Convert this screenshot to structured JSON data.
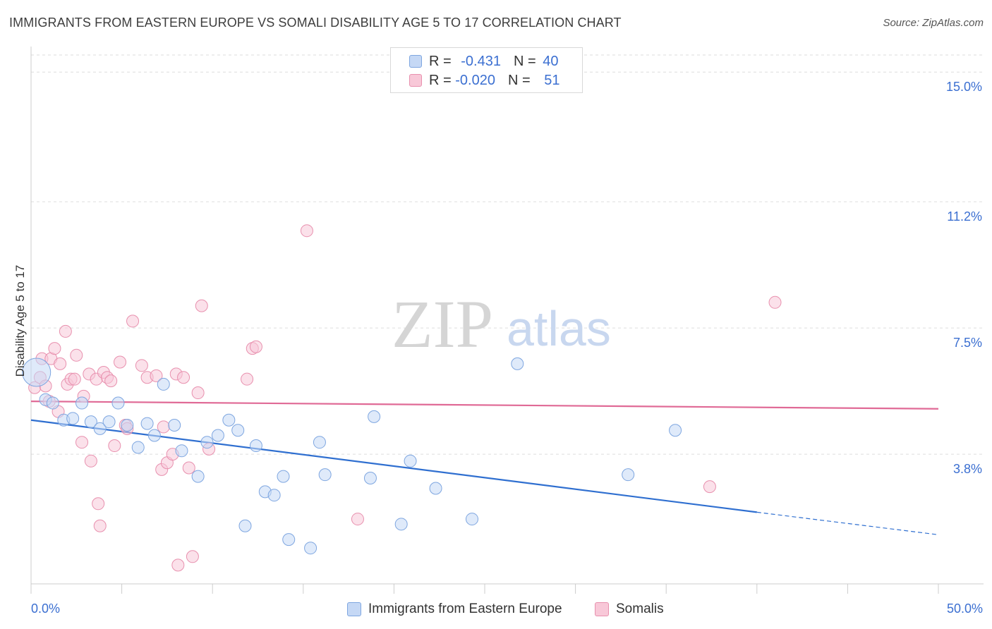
{
  "title": "IMMIGRANTS FROM EASTERN EUROPE VS SOMALI DISABILITY AGE 5 TO 17 CORRELATION CHART",
  "source": "Source: ZipAtlas.com",
  "watermark": {
    "zip": "ZIP",
    "atlas": "atlas"
  },
  "legend": {
    "rows": [
      {
        "r_label": "R = ",
        "r_value": "-0.431",
        "n_label": "N = ",
        "n_value": "40"
      },
      {
        "r_label": "R = ",
        "r_value": "-0.020",
        "n_label": "N = ",
        "n_value": "51"
      }
    ]
  },
  "colors": {
    "blue_fill": "#c5d8f5",
    "blue_stroke": "#7ea6e0",
    "blue_line": "#2f6fd0",
    "pink_fill": "#f8c8d8",
    "pink_stroke": "#e890ae",
    "pink_line": "#e06a96",
    "tick_label": "#3b6fd1",
    "grid": "#dddddd"
  },
  "chart_data": {
    "type": "scatter",
    "title": "IMMIGRANTS FROM EASTERN EUROPE VS SOMALI DISABILITY AGE 5 TO 17 CORRELATION CHART",
    "ylabel": "Disability Age 5 to 17",
    "xlim": [
      0,
      50
    ],
    "ylim": [
      0,
      15.5
    ],
    "x_tick_labels": [
      "0.0%",
      "50.0%"
    ],
    "y_ticks": [
      3.8,
      7.5,
      11.2,
      15.0
    ],
    "y_tick_labels": [
      "3.8%",
      "7.5%",
      "11.2%",
      "15.0%"
    ],
    "grid": true,
    "legend_position": "bottom",
    "series": [
      {
        "name": "Immigrants from Eastern Europe",
        "color": "#7ea6e0",
        "trend": {
          "x0": 0,
          "y0": 4.8,
          "x1": 40,
          "y1": 2.1,
          "dash_to_x": 50,
          "dash_to_y": 1.44
        },
        "points": [
          {
            "x": 0.3,
            "y": 6.2,
            "big": true
          },
          {
            "x": 0.8,
            "y": 5.4
          },
          {
            "x": 1.2,
            "y": 5.3
          },
          {
            "x": 1.8,
            "y": 4.8
          },
          {
            "x": 2.3,
            "y": 4.85
          },
          {
            "x": 2.8,
            "y": 5.3
          },
          {
            "x": 3.3,
            "y": 4.75
          },
          {
            "x": 3.8,
            "y": 4.55
          },
          {
            "x": 4.3,
            "y": 4.75
          },
          {
            "x": 4.8,
            "y": 5.3
          },
          {
            "x": 5.3,
            "y": 4.65
          },
          {
            "x": 5.9,
            "y": 4.0
          },
          {
            "x": 6.4,
            "y": 4.7
          },
          {
            "x": 6.8,
            "y": 4.35
          },
          {
            "x": 7.3,
            "y": 5.85
          },
          {
            "x": 7.9,
            "y": 4.65
          },
          {
            "x": 8.3,
            "y": 3.9
          },
          {
            "x": 9.2,
            "y": 3.15
          },
          {
            "x": 9.7,
            "y": 4.15
          },
          {
            "x": 10.3,
            "y": 4.35
          },
          {
            "x": 10.9,
            "y": 4.8
          },
          {
            "x": 11.4,
            "y": 4.5
          },
          {
            "x": 11.8,
            "y": 1.7
          },
          {
            "x": 12.4,
            "y": 4.05
          },
          {
            "x": 12.9,
            "y": 2.7
          },
          {
            "x": 13.4,
            "y": 2.6
          },
          {
            "x": 13.9,
            "y": 3.15
          },
          {
            "x": 14.2,
            "y": 1.3
          },
          {
            "x": 15.4,
            "y": 1.05
          },
          {
            "x": 15.9,
            "y": 4.15
          },
          {
            "x": 16.2,
            "y": 3.2
          },
          {
            "x": 18.7,
            "y": 3.1
          },
          {
            "x": 18.9,
            "y": 4.9
          },
          {
            "x": 20.4,
            "y": 1.75
          },
          {
            "x": 20.9,
            "y": 3.6
          },
          {
            "x": 22.3,
            "y": 2.8
          },
          {
            "x": 24.3,
            "y": 1.9
          },
          {
            "x": 26.8,
            "y": 6.45
          },
          {
            "x": 32.9,
            "y": 3.2
          },
          {
            "x": 35.5,
            "y": 4.5
          }
        ]
      },
      {
        "name": "Somalis",
        "color": "#e890ae",
        "trend": {
          "x0": 0,
          "y0": 5.35,
          "x1": 50,
          "y1": 5.13
        },
        "points": [
          {
            "x": 0.2,
            "y": 5.75
          },
          {
            "x": 0.5,
            "y": 6.05
          },
          {
            "x": 0.6,
            "y": 6.6
          },
          {
            "x": 0.8,
            "y": 5.8
          },
          {
            "x": 1.0,
            "y": 5.35
          },
          {
            "x": 1.1,
            "y": 6.6
          },
          {
            "x": 1.3,
            "y": 6.9
          },
          {
            "x": 1.5,
            "y": 5.05
          },
          {
            "x": 1.6,
            "y": 6.45
          },
          {
            "x": 1.9,
            "y": 7.4
          },
          {
            "x": 2.0,
            "y": 5.85
          },
          {
            "x": 2.2,
            "y": 6.0
          },
          {
            "x": 2.4,
            "y": 6.0
          },
          {
            "x": 2.5,
            "y": 6.7
          },
          {
            "x": 2.8,
            "y": 4.15
          },
          {
            "x": 2.9,
            "y": 5.5
          },
          {
            "x": 3.2,
            "y": 6.15
          },
          {
            "x": 3.3,
            "y": 3.6
          },
          {
            "x": 3.6,
            "y": 6.0
          },
          {
            "x": 3.7,
            "y": 2.35
          },
          {
            "x": 3.8,
            "y": 1.7
          },
          {
            "x": 4.0,
            "y": 6.2
          },
          {
            "x": 4.2,
            "y": 6.05
          },
          {
            "x": 4.4,
            "y": 5.95
          },
          {
            "x": 4.6,
            "y": 4.05
          },
          {
            "x": 4.9,
            "y": 6.5
          },
          {
            "x": 5.2,
            "y": 4.65
          },
          {
            "x": 5.3,
            "y": 4.55
          },
          {
            "x": 5.6,
            "y": 7.7
          },
          {
            "x": 6.1,
            "y": 6.4
          },
          {
            "x": 6.4,
            "y": 6.05
          },
          {
            "x": 6.9,
            "y": 6.1
          },
          {
            "x": 7.2,
            "y": 3.35
          },
          {
            "x": 7.3,
            "y": 4.6
          },
          {
            "x": 7.5,
            "y": 3.55
          },
          {
            "x": 7.8,
            "y": 3.8
          },
          {
            "x": 8.0,
            "y": 6.15
          },
          {
            "x": 8.1,
            "y": 0.55
          },
          {
            "x": 8.4,
            "y": 6.05
          },
          {
            "x": 8.7,
            "y": 3.4
          },
          {
            "x": 8.9,
            "y": 0.8
          },
          {
            "x": 9.2,
            "y": 5.6
          },
          {
            "x": 9.4,
            "y": 8.15
          },
          {
            "x": 9.8,
            "y": 3.95
          },
          {
            "x": 11.9,
            "y": 6.0
          },
          {
            "x": 12.2,
            "y": 6.9
          },
          {
            "x": 12.4,
            "y": 6.95
          },
          {
            "x": 15.2,
            "y": 10.35
          },
          {
            "x": 18.0,
            "y": 1.9
          },
          {
            "x": 37.4,
            "y": 2.85
          },
          {
            "x": 41.0,
            "y": 8.25
          }
        ]
      }
    ]
  },
  "bottom_legend": [
    {
      "label": "Immigrants from Eastern Europe"
    },
    {
      "label": "Somalis"
    }
  ]
}
